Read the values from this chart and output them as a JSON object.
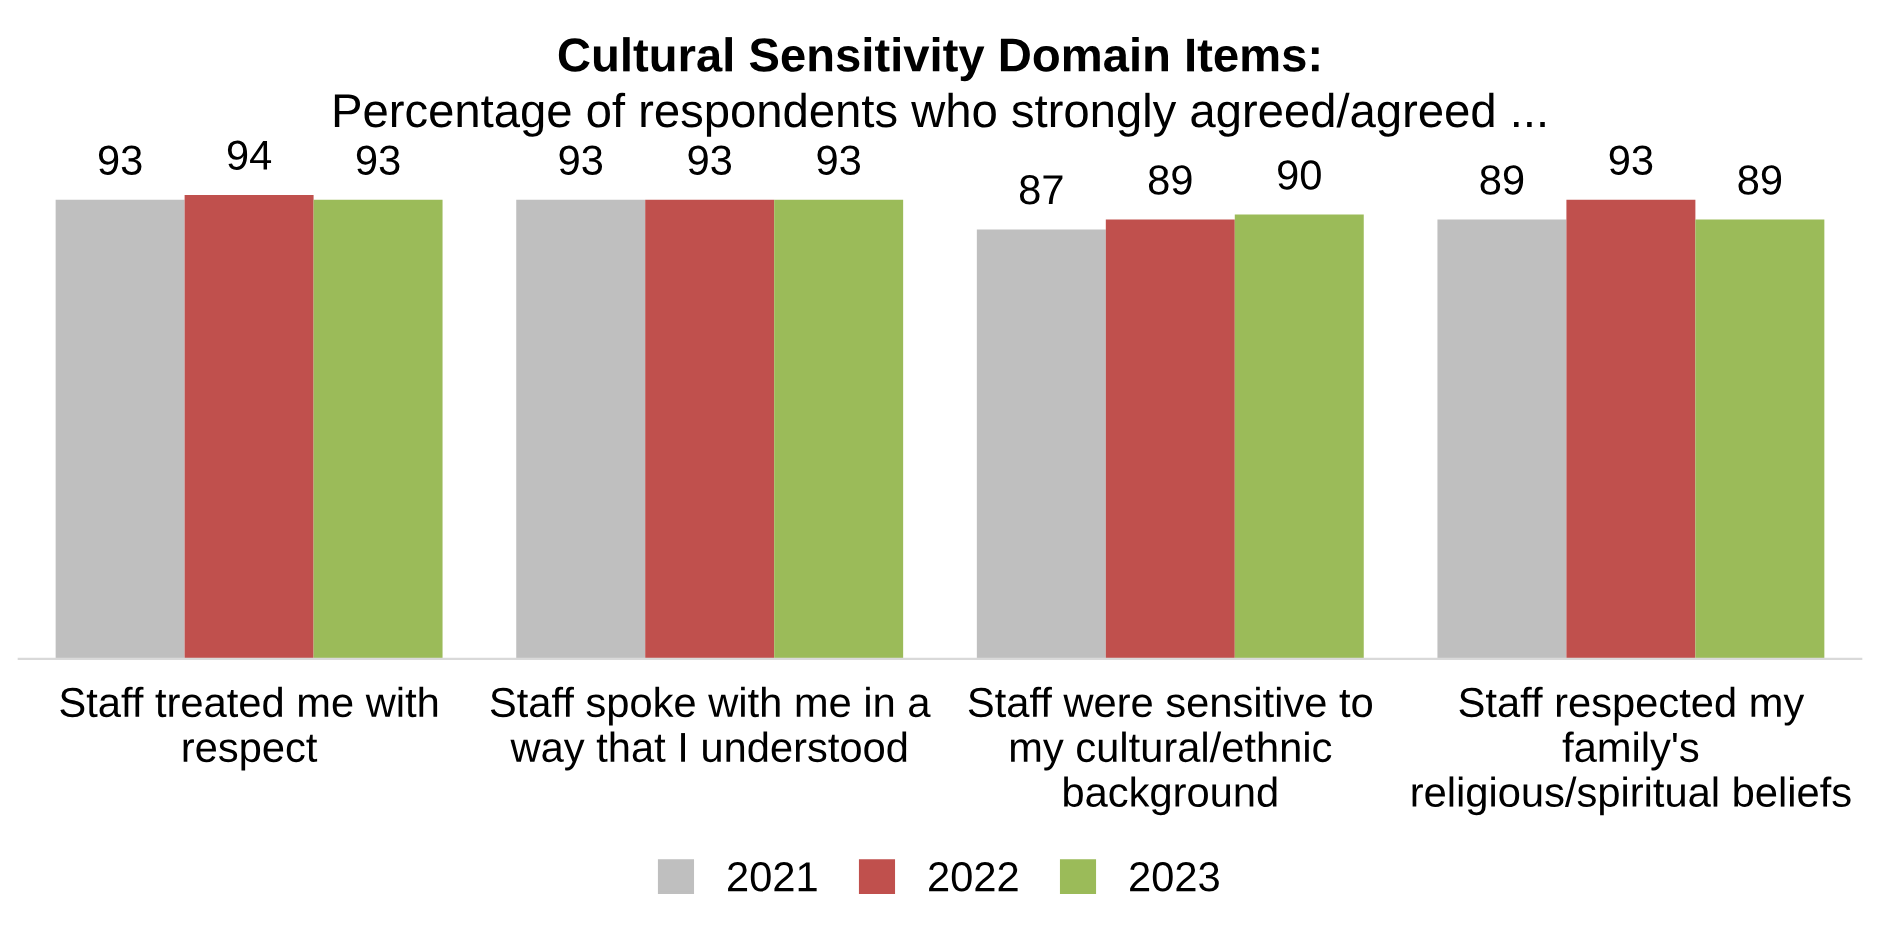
{
  "chart_data": {
    "type": "bar",
    "title": "Cultural Sensitivity Domain Items:",
    "subtitle": "Percentage of respondents who strongly agreed/agreed ...",
    "categories": [
      "Staff treated me with\nrespect",
      "Staff spoke with me in a\nway that I understood",
      "Staff were sensitive to\nmy cultural/ethnic\nbackground",
      "Staff respected my\nfamily's\nreligious/spiritual beliefs"
    ],
    "series": [
      {
        "name": "2021",
        "color": "#bfbfbf",
        "values": [
          93,
          93,
          87,
          89
        ]
      },
      {
        "name": "2022",
        "color": "#c0504d",
        "values": [
          94,
          93,
          89,
          93
        ]
      },
      {
        "name": "2023",
        "color": "#9bbb59",
        "values": [
          93,
          93,
          90,
          89
        ]
      }
    ],
    "data_labels": true,
    "legend": "bottom",
    "grid": false,
    "tick_labels": "x"
  }
}
